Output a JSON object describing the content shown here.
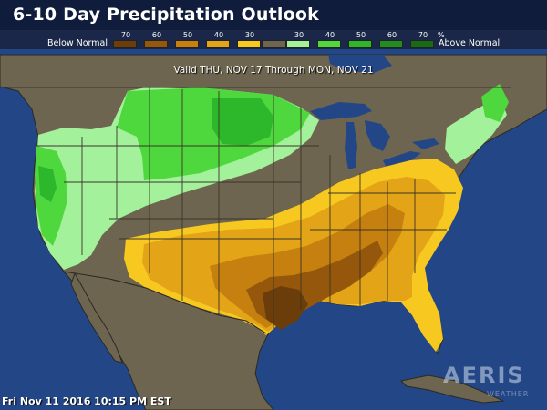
{
  "title": "6-10 Day Precipitation Outlook",
  "valid_text": "Valid THU, NOV 17 Through MON, NOV 21",
  "timestamp": "Fri Nov 11 2016 10:15 PM EST",
  "logo": {
    "text": "AERIS",
    "sub": "WEATHER"
  },
  "legend": {
    "below_label": "Below Normal",
    "above_label": "Above Normal",
    "percent_symbol": "%",
    "below": [
      {
        "label": "70",
        "color": "#6b3d0a"
      },
      {
        "label": "60",
        "color": "#94570c"
      },
      {
        "label": "50",
        "color": "#c5800f"
      },
      {
        "label": "40",
        "color": "#e3a418"
      },
      {
        "label": "30",
        "color": "#f6c820"
      }
    ],
    "neutral_color": "#6e6550",
    "above": [
      {
        "label": "30",
        "color": "#a4f19c"
      },
      {
        "label": "40",
        "color": "#4fd83e"
      },
      {
        "label": "50",
        "color": "#2cb82a"
      },
      {
        "label": "60",
        "color": "#228c21"
      },
      {
        "label": "70",
        "color": "#176b17"
      }
    ]
  },
  "map_colors": {
    "water": "#234786",
    "land": "#6e6550",
    "state_lines": "#3a3527"
  }
}
